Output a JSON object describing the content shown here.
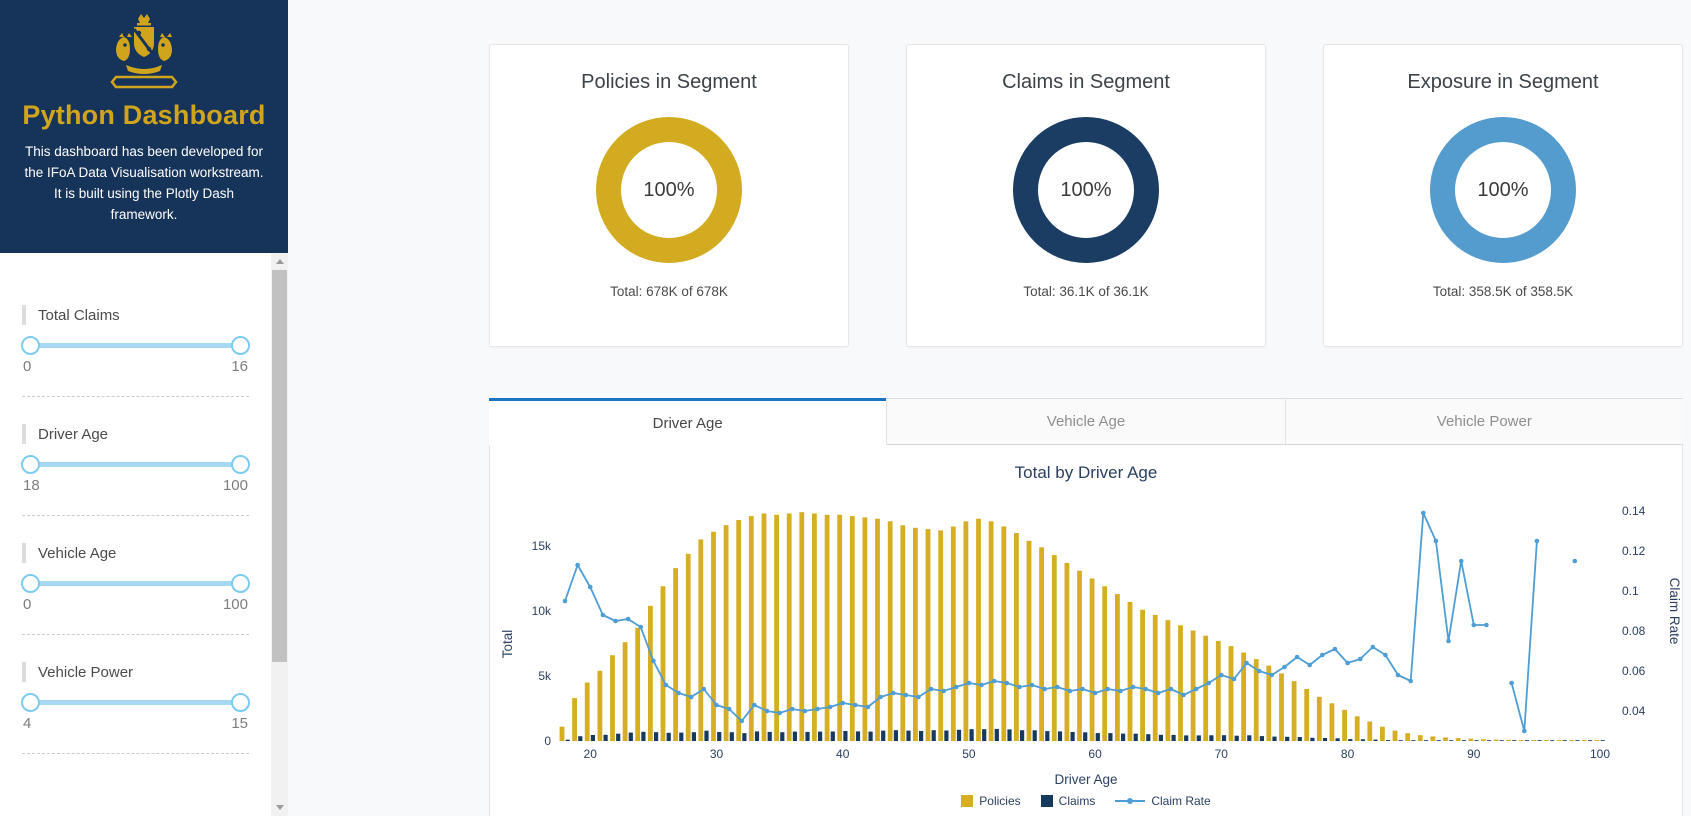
{
  "sidebar": {
    "title": "Python Dashboard",
    "description": "This dashboard has been developed for the IFoA Data Visualisation workstream. It is built using the Plotly Dash framework.",
    "logo_icon": "ifoa-crest-icon",
    "filters": [
      {
        "label": "Total Claims",
        "min": "0",
        "max": "16"
      },
      {
        "label": "Driver Age",
        "min": "18",
        "max": "100"
      },
      {
        "label": "Vehicle Age",
        "min": "0",
        "max": "100"
      },
      {
        "label": "Vehicle Power",
        "min": "4",
        "max": "15"
      }
    ]
  },
  "cards": [
    {
      "title": "Policies in Segment",
      "percent": "100%",
      "total": "Total: 678K of 678K",
      "color": "#d2ab21"
    },
    {
      "title": "Claims in Segment",
      "percent": "100%",
      "total": "Total: 36.1K of 36.1K",
      "color": "#1b3d63"
    },
    {
      "title": "Exposure in Segment",
      "percent": "100%",
      "total": "Total: 358.5K of 358.5K",
      "color": "#549bce"
    }
  ],
  "tabs": [
    {
      "label": "Driver Age",
      "active": true
    },
    {
      "label": "Vehicle Age",
      "active": false
    },
    {
      "label": "Vehicle Power",
      "active": false
    }
  ],
  "chart_data": {
    "type": "bar",
    "title": "Total by Driver Age",
    "xlabel": "Driver Age",
    "ylabel_left": "Total",
    "ylabel_right": "Claim Rate",
    "legend_position": "bottom",
    "grid": false,
    "x_range": [
      18,
      100
    ],
    "x_ticks": [
      20,
      30,
      40,
      50,
      60,
      70,
      80,
      90,
      100
    ],
    "left_ticks": [
      {
        "value": 0,
        "label": "0"
      },
      {
        "value": 5000,
        "label": "5k"
      },
      {
        "value": 10000,
        "label": "10k"
      },
      {
        "value": 15000,
        "label": "15k"
      }
    ],
    "right_ticks": [
      {
        "value": 0.04,
        "label": "0.04"
      },
      {
        "value": 0.06,
        "label": "0.06"
      },
      {
        "value": 0.08,
        "label": "0.08"
      },
      {
        "value": 0.1,
        "label": "0.1"
      },
      {
        "value": 0.12,
        "label": "0.12"
      },
      {
        "value": 0.14,
        "label": "0.14"
      }
    ],
    "x": [
      18,
      19,
      20,
      21,
      22,
      23,
      24,
      25,
      26,
      27,
      28,
      29,
      30,
      31,
      32,
      33,
      34,
      35,
      36,
      37,
      38,
      39,
      40,
      41,
      42,
      43,
      44,
      45,
      46,
      47,
      48,
      49,
      50,
      51,
      52,
      53,
      54,
      55,
      56,
      57,
      58,
      59,
      60,
      61,
      62,
      63,
      64,
      65,
      66,
      67,
      68,
      69,
      70,
      71,
      72,
      73,
      74,
      75,
      76,
      77,
      78,
      79,
      80,
      81,
      82,
      83,
      84,
      85,
      86,
      87,
      88,
      89,
      90,
      91,
      92,
      93,
      94,
      95,
      96,
      97,
      98,
      99,
      100
    ],
    "series": [
      {
        "name": "Policies",
        "type": "bar",
        "axis": "left",
        "color": "#d6ae24",
        "values": [
          1100,
          3300,
          4500,
          5400,
          6600,
          7600,
          8700,
          10400,
          11900,
          13300,
          14400,
          15500,
          16100,
          16600,
          17000,
          17300,
          17500,
          17400,
          17500,
          17600,
          17500,
          17400,
          17400,
          17300,
          17200,
          17100,
          16900,
          16600,
          16400,
          16300,
          16200,
          16500,
          16900,
          17100,
          16900,
          16500,
          16000,
          15400,
          14900,
          14300,
          13700,
          13100,
          12500,
          11900,
          11300,
          10700,
          10100,
          9700,
          9300,
          8900,
          8500,
          8100,
          7700,
          7300,
          6800,
          6300,
          5800,
          5200,
          4600,
          4000,
          3400,
          2900,
          2400,
          1900,
          1500,
          1100,
          800,
          600,
          450,
          350,
          280,
          220,
          180,
          140,
          110,
          90,
          70,
          60,
          50,
          40,
          30,
          30,
          20
        ]
      },
      {
        "name": "Claims",
        "type": "bar",
        "axis": "left",
        "color": "#17395f",
        "values": [
          100,
          370,
          460,
          480,
          560,
          650,
          710,
          680,
          630,
          650,
          680,
          790,
          690,
          680,
          600,
          740,
          700,
          680,
          720,
          700,
          720,
          730,
          770,
          740,
          720,
          800,
          830,
          800,
          770,
          830,
          810,
          860,
          910,
          910,
          930,
          890,
          830,
          820,
          760,
          740,
          690,
          670,
          610,
          610,
          570,
          560,
          520,
          480,
          470,
          430,
          430,
          440,
          450,
          410,
          440,
          380,
          340,
          320,
          310,
          250,
          230,
          210,
          150,
          130,
          110,
          70,
          50,
          30,
          60,
          40,
          20,
          30,
          15,
          12,
          8,
          5,
          2,
          8,
          4,
          3,
          3,
          2,
          1
        ]
      },
      {
        "name": "Claim Rate",
        "type": "line",
        "axis": "right",
        "color": "#4e9dd4",
        "values": [
          0.095,
          0.113,
          0.102,
          0.088,
          0.085,
          0.086,
          0.082,
          0.065,
          0.053,
          0.049,
          0.047,
          0.051,
          0.043,
          0.041,
          0.035,
          0.043,
          0.04,
          0.039,
          0.041,
          0.04,
          0.041,
          0.042,
          0.044,
          0.043,
          0.042,
          0.047,
          0.049,
          0.048,
          0.047,
          0.051,
          0.05,
          0.052,
          0.054,
          0.053,
          0.055,
          0.054,
          0.052,
          0.053,
          0.051,
          0.052,
          0.05,
          0.051,
          0.049,
          0.051,
          0.05,
          0.052,
          0.051,
          0.049,
          0.051,
          0.048,
          0.051,
          0.054,
          0.058,
          0.056,
          0.064,
          0.06,
          0.058,
          0.062,
          0.067,
          0.063,
          0.068,
          0.071,
          0.064,
          0.066,
          0.072,
          0.068,
          0.058,
          0.055,
          0.139,
          0.125,
          0.075,
          0.115,
          0.083,
          0.083,
          null,
          0.054,
          0.03,
          0.125,
          null,
          null,
          0.115,
          null,
          null
        ]
      }
    ]
  },
  "colors": {
    "sidebar_bg": "#163459",
    "accent_gold": "#d0a41d",
    "tab_active_border": "#1e74c4",
    "slider_rail": "#a5d9f3",
    "slider_handle_border": "#7ecbf0",
    "axis_text": "#2a3f5f"
  }
}
